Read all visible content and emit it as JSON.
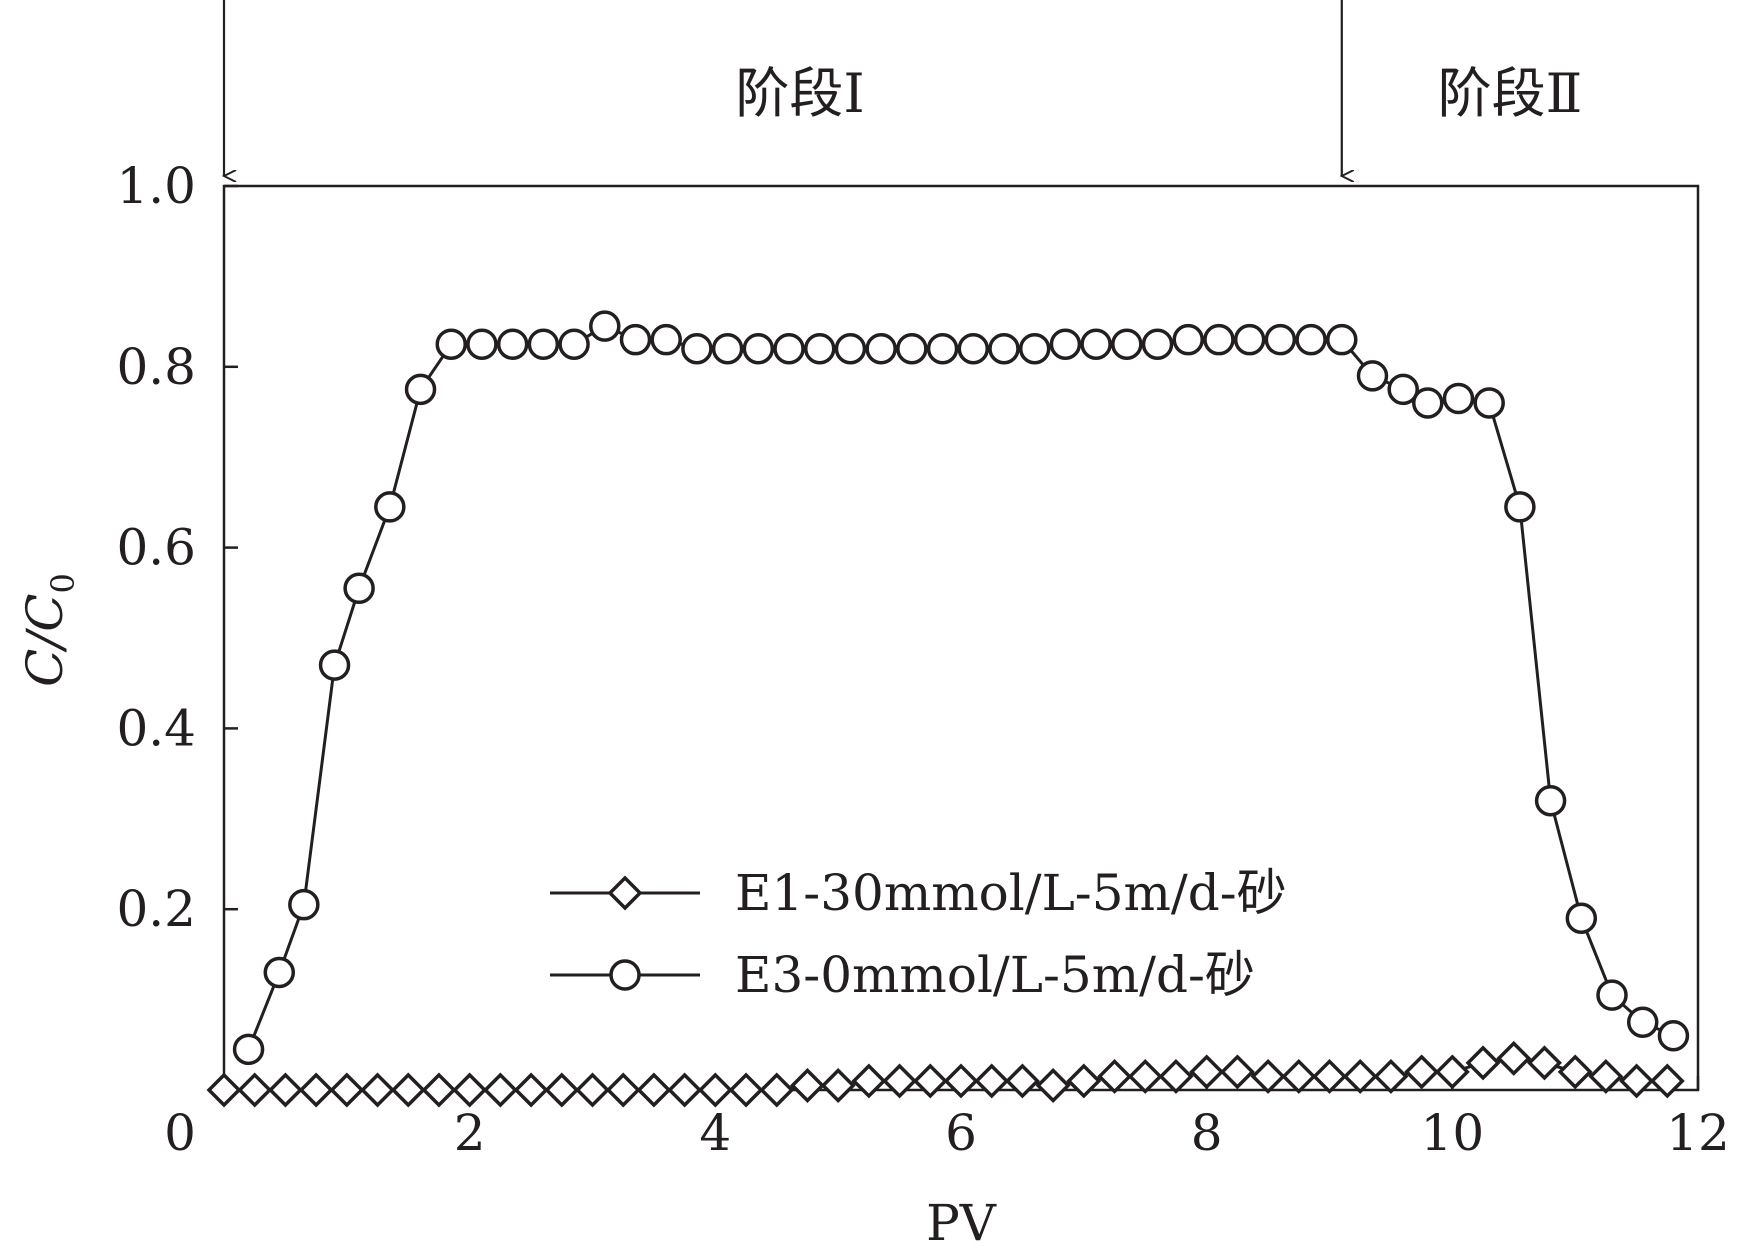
{
  "chart_data": {
    "type": "line",
    "xlabel": "PV",
    "ylabel": "C/C0",
    "ylabel_main": "C/C",
    "ylabel_sub": "0",
    "xlim": [
      0,
      12
    ],
    "ylim": [
      0,
      1.0
    ],
    "x_ticks": [
      "0",
      "2",
      "4",
      "6",
      "8",
      "10",
      "12"
    ],
    "y_ticks": [
      "0",
      "0.2",
      "0.4",
      "0.6",
      "0.8",
      "1.0"
    ],
    "x_tick_values": [
      0,
      2,
      4,
      6,
      8,
      10,
      12
    ],
    "y_tick_values": [
      0,
      0.2,
      0.4,
      0.6,
      0.8,
      1.0
    ],
    "grid": false,
    "legend_position": "bottom-center",
    "stages": [
      {
        "label": "阶段Ⅰ",
        "arrow_x": 0
      },
      {
        "label": "阶段Ⅱ",
        "arrow_x": 9.1
      }
    ],
    "series": [
      {
        "name": "E1-30mmol/L-5m/d-砂",
        "marker": "diamond",
        "color": "#231f20",
        "x": [
          0,
          0.25,
          0.5,
          0.75,
          1.0,
          1.25,
          1.5,
          1.75,
          2.0,
          2.25,
          2.5,
          2.75,
          3.0,
          3.25,
          3.5,
          3.75,
          4.0,
          4.25,
          4.5,
          4.75,
          5.0,
          5.25,
          5.5,
          5.75,
          6.0,
          6.25,
          6.5,
          6.75,
          7.0,
          7.25,
          7.5,
          7.75,
          8.0,
          8.25,
          8.5,
          8.75,
          9.0,
          9.25,
          9.5,
          9.75,
          10.0,
          10.25,
          10.5,
          10.75,
          11.0,
          11.25,
          11.5,
          11.75
        ],
        "y": [
          0.0,
          0.0,
          0.0,
          0.0,
          0.0,
          0.0,
          0.0,
          0.0,
          0.0,
          0.0,
          0.0,
          0.0,
          0.0,
          0.0,
          0.0,
          0.0,
          0.0,
          0.0,
          0.0,
          0.005,
          0.005,
          0.01,
          0.01,
          0.01,
          0.01,
          0.01,
          0.01,
          0.005,
          0.01,
          0.015,
          0.015,
          0.015,
          0.02,
          0.02,
          0.015,
          0.015,
          0.015,
          0.015,
          0.015,
          0.02,
          0.02,
          0.03,
          0.035,
          0.03,
          0.02,
          0.015,
          0.01,
          0.01
        ]
      },
      {
        "name": "E3-0mmol/L-5m/d-砂",
        "marker": "circle",
        "color": "#231f20",
        "x": [
          0.2,
          0.45,
          0.65,
          0.9,
          1.1,
          1.35,
          1.6,
          1.85,
          2.1,
          2.35,
          2.6,
          2.85,
          3.1,
          3.35,
          3.6,
          3.85,
          4.1,
          4.35,
          4.6,
          4.85,
          5.1,
          5.35,
          5.6,
          5.85,
          6.1,
          6.35,
          6.6,
          6.85,
          7.1,
          7.35,
          7.6,
          7.85,
          8.1,
          8.35,
          8.6,
          8.85,
          9.1,
          9.35,
          9.6,
          9.8,
          10.05,
          10.3,
          10.55,
          10.8,
          11.05,
          11.3,
          11.55,
          11.8
        ],
        "y": [
          0.045,
          0.13,
          0.205,
          0.47,
          0.555,
          0.645,
          0.775,
          0.825,
          0.825,
          0.825,
          0.825,
          0.825,
          0.845,
          0.83,
          0.83,
          0.82,
          0.82,
          0.82,
          0.82,
          0.82,
          0.82,
          0.82,
          0.82,
          0.82,
          0.82,
          0.82,
          0.82,
          0.825,
          0.825,
          0.825,
          0.825,
          0.83,
          0.83,
          0.83,
          0.83,
          0.83,
          0.83,
          0.79,
          0.775,
          0.76,
          0.765,
          0.76,
          0.645,
          0.32,
          0.19,
          0.105,
          0.075,
          0.06
        ]
      }
    ]
  }
}
